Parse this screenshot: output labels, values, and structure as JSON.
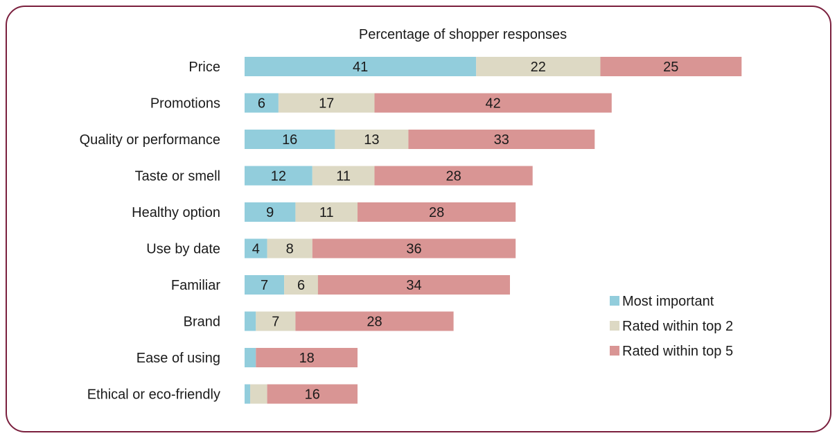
{
  "chart_data": {
    "type": "bar",
    "orientation": "horizontal",
    "stacked": true,
    "title": "Percentage of shopper responses",
    "categories": [
      "Price",
      "Promotions",
      "Quality or performance",
      "Taste or smell",
      "Healthy option",
      "Use by date",
      "Familiar",
      "Brand",
      "Ease of using",
      "Ethical or eco-friendly"
    ],
    "series": [
      {
        "name": "Most important",
        "color": "#92cddc",
        "values": [
          41,
          6,
          16,
          12,
          9,
          4,
          7,
          2,
          2,
          1
        ]
      },
      {
        "name": "Rated within top 2",
        "color": "#ddd9c4",
        "values": [
          22,
          17,
          13,
          11,
          11,
          8,
          6,
          7,
          0,
          3
        ]
      },
      {
        "name": "Rated within top 5",
        "color": "#d99594",
        "values": [
          25,
          42,
          33,
          28,
          28,
          36,
          34,
          28,
          18,
          16
        ]
      }
    ],
    "data_labels": [
      [
        "41",
        "22",
        "25"
      ],
      [
        "6",
        "17",
        "42"
      ],
      [
        "16",
        "13",
        "33"
      ],
      [
        "12",
        "11",
        "28"
      ],
      [
        "9",
        "11",
        "28"
      ],
      [
        "4",
        "8",
        "36"
      ],
      [
        "7",
        "6",
        "34"
      ],
      [
        "",
        "7",
        "28"
      ],
      [
        "",
        "",
        "18"
      ],
      [
        "",
        "",
        "16"
      ]
    ],
    "xlim": [
      0,
      88
    ],
    "grid": false,
    "legend_position": "right"
  }
}
